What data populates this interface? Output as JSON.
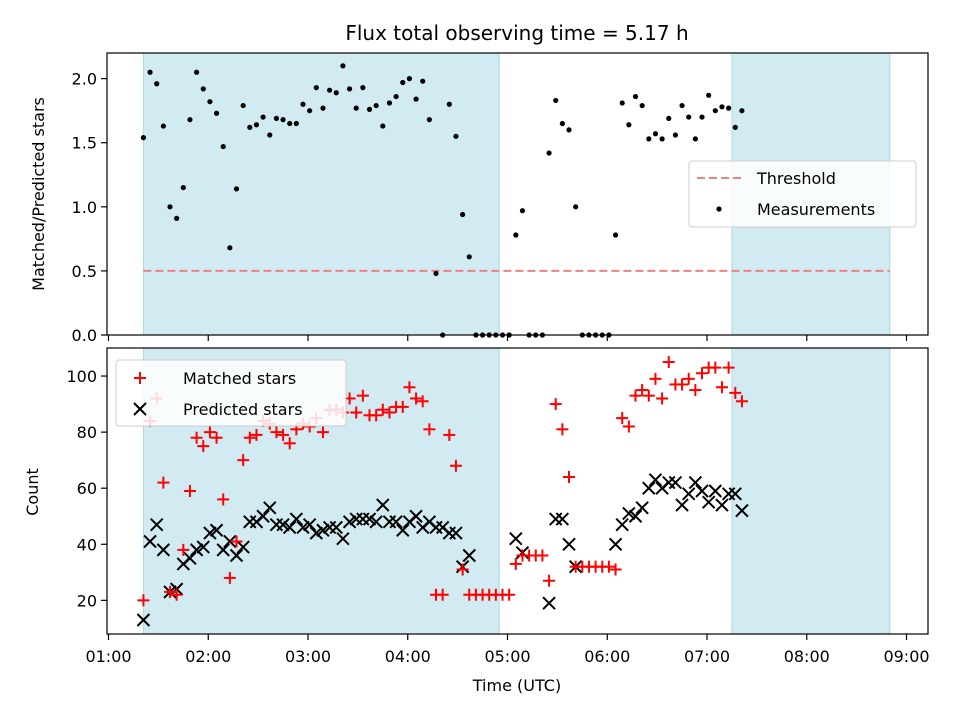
{
  "figure": {
    "title": "Flux total observing time = 5.17 h",
    "xlabel": "Time (UTC)",
    "x_ticks": [
      "01:00",
      "02:00",
      "03:00",
      "04:00",
      "05:00",
      "06:00",
      "07:00",
      "08:00",
      "09:00"
    ],
    "colors": {
      "shade": "#add8e6",
      "threshold": "#f08080",
      "measurement": "#000000",
      "matched": "#ff0000",
      "predicted": "#000000"
    }
  },
  "chart_data": [
    {
      "type": "scatter",
      "ylabel": "Matched/Predicted stars",
      "xlim": [
        "01:00",
        "09:00"
      ],
      "ylim": [
        0,
        2.2
      ],
      "y_ticks": [
        "0.0",
        "0.5",
        "1.0",
        "1.5",
        "2.0"
      ],
      "legend_position": "center-right",
      "shaded_intervals": [
        [
          "01:21",
          "04:55"
        ],
        [
          "07:15",
          "08:50"
        ]
      ],
      "threshold": {
        "name": "Threshold",
        "value": 0.5,
        "x_range": [
          "01:21",
          "08:50"
        ]
      },
      "series": [
        {
          "name": "Measurements",
          "points": [
            [
              "01:21",
              1.54
            ],
            [
              "01:25",
              2.05
            ],
            [
              "01:29",
              1.96
            ],
            [
              "01:33",
              1.63
            ],
            [
              "01:37",
              1.0
            ],
            [
              "01:41",
              0.91
            ],
            [
              "01:45",
              1.15
            ],
            [
              "01:49",
              1.68
            ],
            [
              "01:53",
              2.05
            ],
            [
              "01:57",
              1.92
            ],
            [
              "02:01",
              1.82
            ],
            [
              "02:05",
              1.73
            ],
            [
              "02:09",
              1.47
            ],
            [
              "02:13",
              0.68
            ],
            [
              "02:17",
              1.14
            ],
            [
              "02:21",
              1.79
            ],
            [
              "02:25",
              1.62
            ],
            [
              "02:29",
              1.64
            ],
            [
              "02:33",
              1.7
            ],
            [
              "02:37",
              1.56
            ],
            [
              "02:41",
              1.69
            ],
            [
              "02:45",
              1.68
            ],
            [
              "02:49",
              1.65
            ],
            [
              "02:53",
              1.65
            ],
            [
              "02:57",
              1.8
            ],
            [
              "03:01",
              1.75
            ],
            [
              "03:05",
              1.93
            ],
            [
              "03:09",
              1.77
            ],
            [
              "03:13",
              1.91
            ],
            [
              "03:17",
              1.89
            ],
            [
              "03:21",
              2.1
            ],
            [
              "03:25",
              1.92
            ],
            [
              "03:29",
              1.77
            ],
            [
              "03:33",
              1.93
            ],
            [
              "03:37",
              1.76
            ],
            [
              "03:41",
              1.79
            ],
            [
              "03:45",
              1.63
            ],
            [
              "03:49",
              1.81
            ],
            [
              "03:53",
              1.86
            ],
            [
              "03:57",
              1.97
            ],
            [
              "04:01",
              2.0
            ],
            [
              "04:05",
              1.84
            ],
            [
              "04:09",
              1.98
            ],
            [
              "04:13",
              1.68
            ],
            [
              "04:17",
              0.48
            ],
            [
              "04:21",
              0.0
            ],
            [
              "04:25",
              1.8
            ],
            [
              "04:29",
              1.55
            ],
            [
              "04:33",
              0.94
            ],
            [
              "04:37",
              0.61
            ],
            [
              "04:41",
              0.0
            ],
            [
              "04:45",
              0.0
            ],
            [
              "04:49",
              0.0
            ],
            [
              "04:53",
              0.0
            ],
            [
              "04:57",
              0.0
            ],
            [
              "05:01",
              0.0
            ],
            [
              "05:05",
              0.78
            ],
            [
              "05:09",
              0.97
            ],
            [
              "05:13",
              0.0
            ],
            [
              "05:17",
              0.0
            ],
            [
              "05:21",
              0.0
            ],
            [
              "05:25",
              1.42
            ],
            [
              "05:29",
              1.83
            ],
            [
              "05:33",
              1.65
            ],
            [
              "05:37",
              1.6
            ],
            [
              "05:41",
              1.0
            ],
            [
              "05:45",
              0.0
            ],
            [
              "05:49",
              0.0
            ],
            [
              "05:53",
              0.0
            ],
            [
              "05:57",
              0.0
            ],
            [
              "06:01",
              0.0
            ],
            [
              "06:05",
              0.78
            ],
            [
              "06:09",
              1.81
            ],
            [
              "06:13",
              1.64
            ],
            [
              "06:17",
              1.86
            ],
            [
              "06:21",
              1.79
            ],
            [
              "06:25",
              1.53
            ],
            [
              "06:29",
              1.57
            ],
            [
              "06:33",
              1.53
            ],
            [
              "06:37",
              1.69
            ],
            [
              "06:41",
              1.56
            ],
            [
              "06:45",
              1.79
            ],
            [
              "06:49",
              1.7
            ],
            [
              "06:53",
              1.53
            ],
            [
              "06:57",
              1.7
            ],
            [
              "07:01",
              1.87
            ],
            [
              "07:05",
              1.75
            ],
            [
              "07:09",
              1.78
            ],
            [
              "07:13",
              1.77
            ],
            [
              "07:17",
              1.62
            ],
            [
              "07:21",
              1.75
            ]
          ]
        }
      ]
    },
    {
      "type": "scatter",
      "ylabel": "Count",
      "xlim": [
        "01:00",
        "09:00"
      ],
      "ylim": [
        8,
        110
      ],
      "y_ticks": [
        "20",
        "40",
        "60",
        "80",
        "100"
      ],
      "legend_position": "top-left",
      "shaded_intervals": [
        [
          "01:21",
          "04:55"
        ],
        [
          "07:15",
          "08:50"
        ]
      ],
      "series": [
        {
          "name": "Matched stars",
          "points": [
            [
              "01:21",
              20
            ],
            [
              "01:25",
              84
            ],
            [
              "01:29",
              92
            ],
            [
              "01:33",
              62
            ],
            [
              "01:37",
              23
            ],
            [
              "01:41",
              22
            ],
            [
              "01:45",
              38
            ],
            [
              "01:49",
              59
            ],
            [
              "01:53",
              78
            ],
            [
              "01:57",
              75
            ],
            [
              "02:01",
              80
            ],
            [
              "02:05",
              78
            ],
            [
              "02:09",
              56
            ],
            [
              "02:13",
              28
            ],
            [
              "02:17",
              41
            ],
            [
              "02:21",
              70
            ],
            [
              "02:25",
              78
            ],
            [
              "02:29",
              79
            ],
            [
              "02:33",
              84
            ],
            [
              "02:37",
              83
            ],
            [
              "02:41",
              80
            ],
            [
              "02:45",
              79
            ],
            [
              "02:49",
              76
            ],
            [
              "02:53",
              81
            ],
            [
              "02:57",
              83
            ],
            [
              "03:01",
              82
            ],
            [
              "03:05",
              85
            ],
            [
              "03:09",
              80
            ],
            [
              "03:13",
              88
            ],
            [
              "03:17",
              88
            ],
            [
              "03:21",
              87
            ],
            [
              "03:25",
              92
            ],
            [
              "03:29",
              87
            ],
            [
              "03:33",
              93
            ],
            [
              "03:37",
              86
            ],
            [
              "03:41",
              86
            ],
            [
              "03:45",
              88
            ],
            [
              "03:49",
              87
            ],
            [
              "03:53",
              89
            ],
            [
              "03:57",
              89
            ],
            [
              "04:01",
              96
            ],
            [
              "04:05",
              92
            ],
            [
              "04:09",
              91
            ],
            [
              "04:13",
              81
            ],
            [
              "04:17",
              22
            ],
            [
              "04:21",
              22
            ],
            [
              "04:25",
              79
            ],
            [
              "04:29",
              68
            ],
            [
              "04:33",
              31
            ],
            [
              "04:37",
              22
            ],
            [
              "04:41",
              22
            ],
            [
              "04:45",
              22
            ],
            [
              "04:49",
              22
            ],
            [
              "04:53",
              22
            ],
            [
              "04:57",
              22
            ],
            [
              "05:01",
              22
            ],
            [
              "05:05",
              33
            ],
            [
              "05:09",
              36
            ],
            [
              "05:13",
              36
            ],
            [
              "05:17",
              36
            ],
            [
              "05:21",
              36
            ],
            [
              "05:25",
              27
            ],
            [
              "05:29",
              90
            ],
            [
              "05:33",
              81
            ],
            [
              "05:37",
              64
            ],
            [
              "05:41",
              32
            ],
            [
              "05:45",
              32
            ],
            [
              "05:49",
              32
            ],
            [
              "05:53",
              32
            ],
            [
              "05:57",
              32
            ],
            [
              "06:01",
              32
            ],
            [
              "06:05",
              31
            ],
            [
              "06:09",
              85
            ],
            [
              "06:13",
              82
            ],
            [
              "06:17",
              93
            ],
            [
              "06:21",
              95
            ],
            [
              "06:25",
              93
            ],
            [
              "06:29",
              99
            ],
            [
              "06:33",
              92
            ],
            [
              "06:37",
              105
            ],
            [
              "06:41",
              97
            ],
            [
              "06:45",
              97
            ],
            [
              "06:49",
              99
            ],
            [
              "06:53",
              95
            ],
            [
              "06:57",
              101
            ],
            [
              "07:01",
              103
            ],
            [
              "07:05",
              103
            ],
            [
              "07:09",
              96
            ],
            [
              "07:13",
              103
            ],
            [
              "07:17",
              94
            ],
            [
              "07:21",
              91
            ]
          ]
        },
        {
          "name": "Predicted stars",
          "points": [
            [
              "01:21",
              13
            ],
            [
              "01:25",
              41
            ],
            [
              "01:29",
              47
            ],
            [
              "01:33",
              38
            ],
            [
              "01:37",
              23
            ],
            [
              "01:41",
              24
            ],
            [
              "01:45",
              33
            ],
            [
              "01:49",
              35
            ],
            [
              "01:53",
              38
            ],
            [
              "01:57",
              39
            ],
            [
              "02:01",
              44
            ],
            [
              "02:05",
              45
            ],
            [
              "02:09",
              38
            ],
            [
              "02:13",
              41
            ],
            [
              "02:17",
              36
            ],
            [
              "02:21",
              39
            ],
            [
              "02:25",
              48
            ],
            [
              "02:29",
              48
            ],
            [
              "02:33",
              50
            ],
            [
              "02:37",
              53
            ],
            [
              "02:41",
              47
            ],
            [
              "02:45",
              47
            ],
            [
              "02:49",
              46
            ],
            [
              "02:53",
              49
            ],
            [
              "02:57",
              46
            ],
            [
              "03:01",
              47
            ],
            [
              "03:05",
              44
            ],
            [
              "03:09",
              45
            ],
            [
              "03:13",
              46
            ],
            [
              "03:17",
              46
            ],
            [
              "03:21",
              42
            ],
            [
              "03:25",
              48
            ],
            [
              "03:29",
              49
            ],
            [
              "03:33",
              49
            ],
            [
              "03:37",
              49
            ],
            [
              "03:41",
              48
            ],
            [
              "03:45",
              54
            ],
            [
              "03:49",
              48
            ],
            [
              "03:53",
              48
            ],
            [
              "03:57",
              45
            ],
            [
              "04:01",
              48
            ],
            [
              "04:05",
              50
            ],
            [
              "04:09",
              46
            ],
            [
              "04:13",
              48
            ],
            [
              "04:17",
              46
            ],
            [
              "04:21",
              46
            ],
            [
              "04:25",
              44
            ],
            [
              "04:29",
              44
            ],
            [
              "04:33",
              32
            ],
            [
              "04:37",
              36
            ],
            [
              "05:05",
              42
            ],
            [
              "05:09",
              37
            ],
            [
              "05:25",
              19
            ],
            [
              "05:29",
              49
            ],
            [
              "05:33",
              49
            ],
            [
              "05:37",
              40
            ],
            [
              "05:41",
              32
            ],
            [
              "06:05",
              40
            ],
            [
              "06:09",
              47
            ],
            [
              "06:13",
              51
            ],
            [
              "06:17",
              50
            ],
            [
              "06:21",
              53
            ],
            [
              "06:25",
              60
            ],
            [
              "06:29",
              63
            ],
            [
              "06:33",
              60
            ],
            [
              "06:37",
              62
            ],
            [
              "06:41",
              62
            ],
            [
              "06:45",
              54
            ],
            [
              "06:49",
              58
            ],
            [
              "06:53",
              62
            ],
            [
              "06:57",
              59
            ],
            [
              "07:01",
              55
            ],
            [
              "07:05",
              59
            ],
            [
              "07:09",
              54
            ],
            [
              "07:13",
              58
            ],
            [
              "07:17",
              58
            ],
            [
              "07:21",
              52
            ]
          ]
        }
      ]
    }
  ]
}
